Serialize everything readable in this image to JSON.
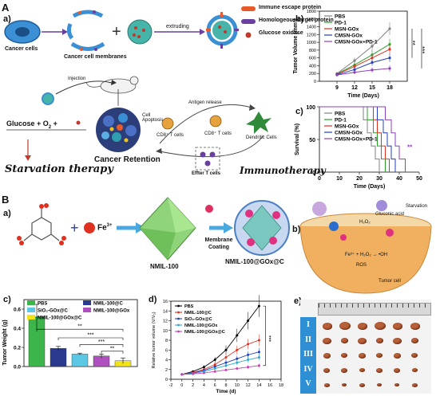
{
  "panelA": {
    "label": "A",
    "sub_a": "a)",
    "sub_b": "b)",
    "sub_c": "c)",
    "cancer_cells": "Cancer cells",
    "cancer_membranes": "Cancer cell membranes",
    "extruding": "extruding",
    "legend": [
      {
        "text": "Immune escape protein",
        "color": "#e85a2a"
      },
      {
        "text": "Homologeous target protein",
        "color": "#6a3fa0"
      },
      {
        "text": "Glucose oxidase",
        "color": "#c0392b"
      }
    ],
    "injection": "Injection",
    "antigen_release": "Antigen release",
    "cancer_retention": "Cancer Retention",
    "glucose": "Glucose",
    "o2": "O",
    "o2_sub": "2",
    "starvation": "Starvation therapy",
    "immunotherapy": "Immunotherapy",
    "effector": "Effter T cells",
    "cd8_1": "CD8⁺ T cells",
    "cd8_2": "CD8⁺ T cells",
    "dendritic": "Dendritic Cells",
    "cell_apoptosis": "Cell Apoptosis"
  },
  "panelB": {
    "label": "B",
    "sub_a": "a)",
    "sub_b": "b)",
    "fe": "Fe",
    "fe_sup": "3+",
    "nmil": "NMIL-100",
    "membrane_coating": "Membrane Coating",
    "product": "NMIL-100@GOx@C",
    "glucose_acid": "Gluconic acid",
    "h2o2": "H₂O₂",
    "starvation_small": "Starvation",
    "tumor_cell": "Tumor cell",
    "ros": "ROS",
    "fenton": "Fe³⁺ + H₂O₂ → •OH"
  },
  "chart_b": {
    "label": "b)",
    "ylabel": "Tumor Volume (mm³)",
    "xlabel": "Time (Days)",
    "yticks": [
      "0",
      "200",
      "400",
      "600",
      "800",
      "1000",
      "1200",
      "1400",
      "1600",
      "1800"
    ],
    "xticks": [
      "9",
      "12",
      "15",
      "18"
    ],
    "sig": [
      "**",
      "***"
    ],
    "legend": [
      {
        "name": "PBS",
        "color": "#808080"
      },
      {
        "name": "PD-1",
        "color": "#2ca02c"
      },
      {
        "name": "MSN-GOx",
        "color": "#e03020"
      },
      {
        "name": "CMSN-GOx",
        "color": "#1f3fbf"
      },
      {
        "name": "CMSN-GOx+PD-1",
        "color": "#8e3fbf"
      }
    ]
  },
  "chart_c": {
    "label": "c)",
    "ylabel": "Survival (%)",
    "xlabel": "Time (Days)",
    "yticks": [
      "0",
      "50",
      "100"
    ],
    "xticks": [
      "0",
      "10",
      "20",
      "30",
      "40",
      "50"
    ],
    "sig": "**",
    "legend": [
      {
        "name": "PBS",
        "color": "#808080"
      },
      {
        "name": "PD-1",
        "color": "#2ca02c"
      },
      {
        "name": "MSN-GOx",
        "color": "#e03020"
      },
      {
        "name": "CMSN-GOx",
        "color": "#1f3fbf"
      },
      {
        "name": "CMSN-GOx+PD-1",
        "color": "#8e3fbf"
      }
    ]
  },
  "chart_bc": {
    "label": "c)",
    "ylabel": "Tumor Weight (g)",
    "yticks": [
      "0.0",
      "0.2",
      "0.4",
      "0.6"
    ],
    "sig": [
      "**",
      "***",
      "***",
      "**"
    ],
    "legend": [
      {
        "name": "PBS",
        "color": "#3cb54a"
      },
      {
        "name": "NMIL-100@C",
        "color": "#2b3a8f"
      },
      {
        "name": "SiO₂-GOx@C",
        "color": "#5bc8e6"
      },
      {
        "name": "NMIL-100@GOx",
        "color": "#b04fc0"
      },
      {
        "name": "NMIL-100@GOx@C",
        "color": "#f2e21a"
      }
    ]
  },
  "chart_bd": {
    "label": "d)",
    "ylabel": "Relative tumor volume (V/V₀)",
    "xlabel": "Time (d)",
    "yticks": [
      "0",
      "2",
      "4",
      "6",
      "8",
      "10",
      "12",
      "14",
      "16"
    ],
    "xticks": [
      "-2",
      "0",
      "2",
      "4",
      "6",
      "8",
      "10",
      "12",
      "14",
      "16",
      "18"
    ],
    "sig": "***",
    "legend": [
      {
        "name": "PBS",
        "color": "#000000"
      },
      {
        "name": "NMIL-100@C",
        "color": "#e03020"
      },
      {
        "name": "SiO₂-GOx@C",
        "color": "#1f3fbf"
      },
      {
        "name": "NMIL-100@GOx",
        "color": "#2ca8c8"
      },
      {
        "name": "NMIL-100@GOx@C",
        "color": "#c83fb0"
      }
    ]
  },
  "panel_be": {
    "label": "e)",
    "rows": [
      "I",
      "II",
      "III",
      "IV",
      "V"
    ]
  },
  "chart_data": [
    {
      "type": "line",
      "xlabel": "Time (Days)",
      "ylabel": "Tumor Volume (mm³)",
      "x": [
        9,
        12,
        15,
        18
      ],
      "ylim": [
        0,
        1800
      ],
      "series": [
        {
          "name": "PBS",
          "values": [
            200,
            530,
            900,
            1350
          ]
        },
        {
          "name": "PD-1",
          "values": [
            190,
            420,
            680,
            950
          ]
        },
        {
          "name": "MSN-GOx",
          "values": [
            180,
            380,
            600,
            820
          ]
        },
        {
          "name": "CMSN-GOx",
          "values": [
            170,
            300,
            480,
            600
          ]
        },
        {
          "name": "CMSN-GOx+PD-1",
          "values": [
            160,
            230,
            290,
            330
          ]
        }
      ]
    },
    {
      "type": "line",
      "xlabel": "Time (Days)",
      "ylabel": "Survival (%)",
      "xlim": [
        0,
        50
      ],
      "ylim": [
        0,
        100
      ],
      "series": [
        {
          "name": "PBS",
          "values": [
            [
              0,
              100
            ],
            [
              20,
              100
            ],
            [
              22,
              80
            ],
            [
              24,
              60
            ],
            [
              26,
              40
            ],
            [
              28,
              20
            ],
            [
              30,
              0
            ]
          ]
        },
        {
          "name": "PD-1",
          "values": [
            [
              0,
              100
            ],
            [
              22,
              100
            ],
            [
              24,
              80
            ],
            [
              27,
              60
            ],
            [
              29,
              40
            ],
            [
              31,
              20
            ],
            [
              33,
              0
            ]
          ]
        },
        {
          "name": "MSN-GOx",
          "values": [
            [
              0,
              100
            ],
            [
              24,
              100
            ],
            [
              27,
              80
            ],
            [
              29,
              60
            ],
            [
              31,
              40
            ],
            [
              33,
              20
            ],
            [
              35,
              0
            ]
          ]
        },
        {
          "name": "CMSN-GOx",
          "values": [
            [
              0,
              100
            ],
            [
              27,
              100
            ],
            [
              29,
              80
            ],
            [
              32,
              60
            ],
            [
              34,
              40
            ],
            [
              36,
              20
            ],
            [
              38,
              0
            ]
          ]
        },
        {
          "name": "CMSN-GOx+PD-1",
          "values": [
            [
              0,
              100
            ],
            [
              31,
              100
            ],
            [
              33,
              80
            ],
            [
              36,
              60
            ],
            [
              38,
              40
            ],
            [
              40,
              20
            ],
            [
              43,
              0
            ]
          ]
        }
      ]
    },
    {
      "type": "bar",
      "ylabel": "Tumor Weight (g)",
      "categories": [
        "PBS",
        "NMIL-100@C",
        "SiO₂-GOx@C",
        "NMIL-100@GOx",
        "NMIL-100@GOx@C"
      ],
      "values": [
        0.52,
        0.19,
        0.13,
        0.11,
        0.06
      ],
      "errors": [
        0.13,
        0.02,
        0.01,
        0.02,
        0.03
      ],
      "ylim": [
        0,
        0.7
      ]
    },
    {
      "type": "line",
      "xlabel": "Time (d)",
      "ylabel": "Relative tumor volume (V/V₀)",
      "x": [
        0,
        2,
        4,
        6,
        8,
        10,
        12,
        14
      ],
      "xlim": [
        -2,
        18
      ],
      "ylim": [
        0,
        16
      ],
      "series": [
        {
          "name": "PBS",
          "values": [
            1,
            1.6,
            2.5,
            4,
            6,
            9,
            12,
            15
          ]
        },
        {
          "name": "NMIL-100@C",
          "values": [
            1,
            1.4,
            2,
            3,
            4.5,
            6,
            7.2,
            8
          ]
        },
        {
          "name": "SiO₂-GOx@C",
          "values": [
            1,
            1.3,
            1.8,
            2.6,
            3.4,
            4.2,
            5,
            5.6
          ]
        },
        {
          "name": "NMIL-100@GOx",
          "values": [
            1,
            1.2,
            1.6,
            2.2,
            2.8,
            3.4,
            4,
            4.5
          ]
        },
        {
          "name": "NMIL-100@GOx@C",
          "values": [
            1,
            1.1,
            1.3,
            1.6,
            1.9,
            2.2,
            2.5,
            2.8
          ]
        }
      ]
    }
  ]
}
